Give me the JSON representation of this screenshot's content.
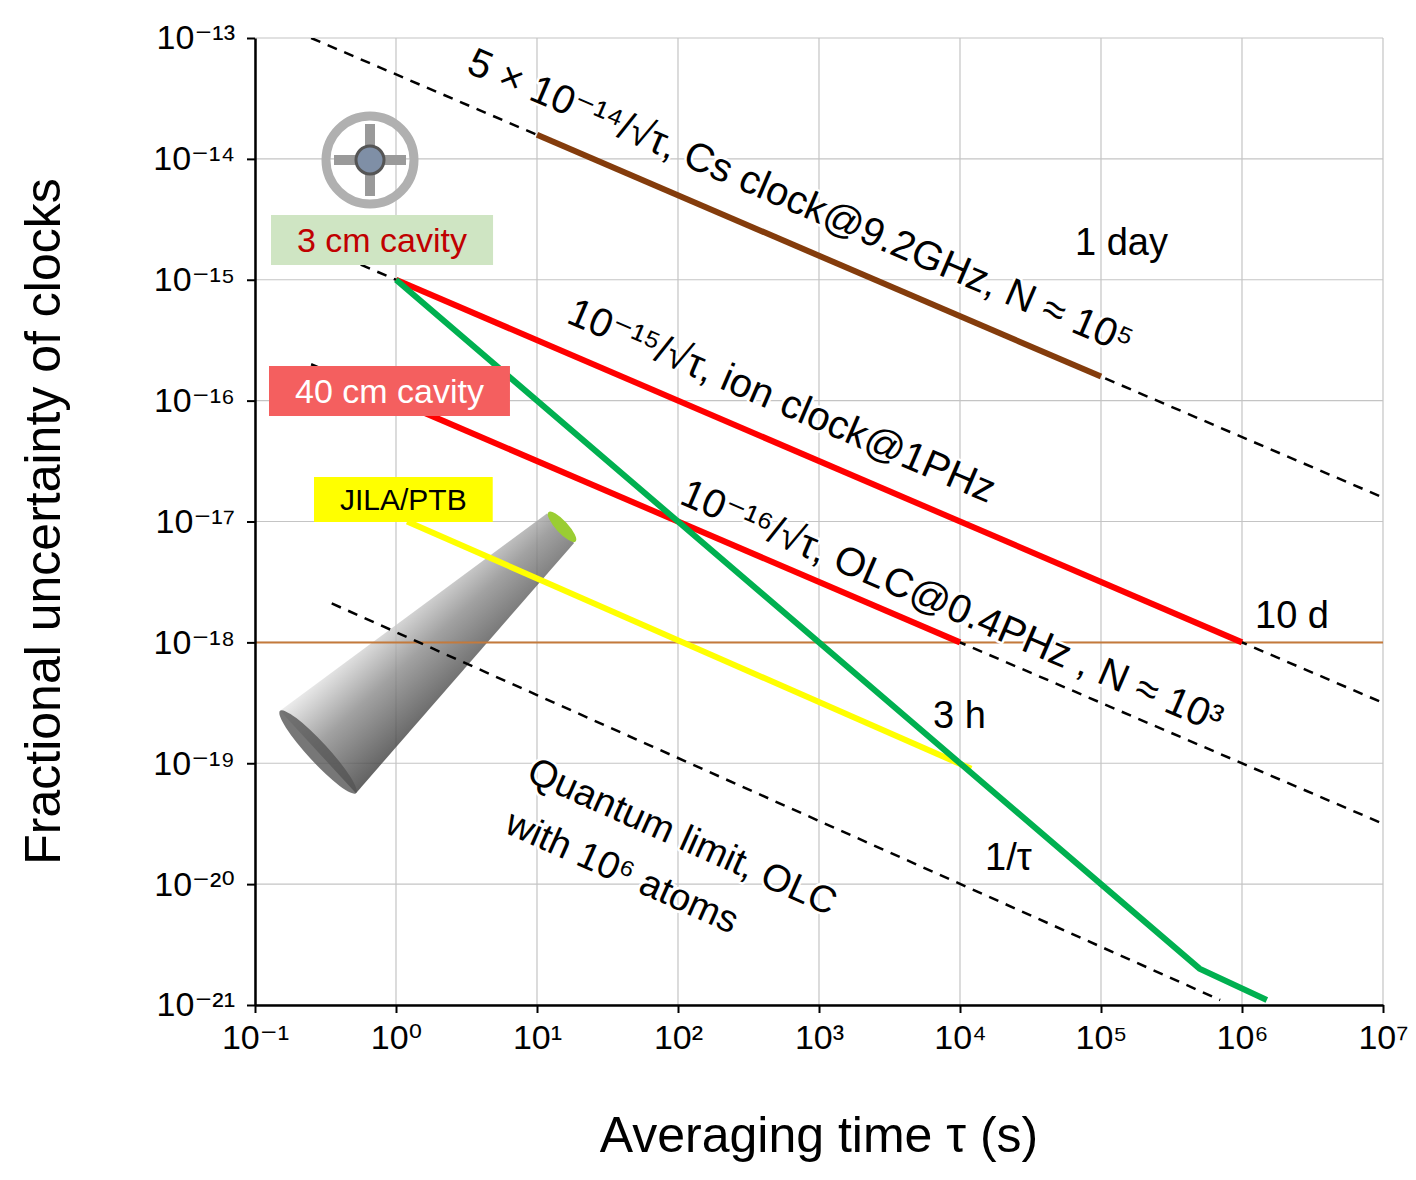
{
  "chart_data": {
    "type": "line",
    "xlabel": "Averaging time τ (s)",
    "ylabel": "Fractional uncertainty of clocks",
    "log": true,
    "grid": true,
    "xlim": [
      0.1,
      10000000
    ],
    "ylim": [
      1e-21,
      1e-13
    ],
    "xticks": [
      {
        "value": 0.1,
        "label": "10⁻¹"
      },
      {
        "value": 1,
        "label": "10⁰"
      },
      {
        "value": 10,
        "label": "10¹"
      },
      {
        "value": 100,
        "label": "10²"
      },
      {
        "value": 1000,
        "label": "10³"
      },
      {
        "value": 10000,
        "label": "10⁴"
      },
      {
        "value": 100000,
        "label": "10⁵"
      },
      {
        "value": 1000000,
        "label": "10⁶"
      },
      {
        "value": 10000000,
        "label": "10⁷"
      }
    ],
    "yticks": [
      {
        "value": 1e-21,
        "label": "10⁻²¹"
      },
      {
        "value": 1e-20,
        "label": "10⁻²⁰"
      },
      {
        "value": 1e-19,
        "label": "10⁻¹⁹"
      },
      {
        "value": 1e-18,
        "label": "10⁻¹⁸"
      },
      {
        "value": 1e-17,
        "label": "10⁻¹⁷"
      },
      {
        "value": 1e-16,
        "label": "10⁻¹⁶"
      },
      {
        "value": 1e-15,
        "label": "10⁻¹⁵"
      },
      {
        "value": 1e-14,
        "label": "10⁻¹⁴"
      },
      {
        "value": 1e-13,
        "label": "10⁻¹³"
      }
    ],
    "series": [
      {
        "color": "#c47a3c",
        "line_style": "solid",
        "x": [
          0.1,
          10000000
        ],
        "values": [
          1e-18,
          1e-18
        ]
      },
      {
        "color": "#000000",
        "line_style": "dashed",
        "x": [
          0.25,
          10000000
        ],
        "values": [
          1e-13,
          1.58e-17
        ]
      },
      {
        "color": "#000000",
        "line_style": "dashed",
        "x": [
          0.25,
          10000000
        ],
        "values": [
          2e-15,
          3.16e-19
        ]
      },
      {
        "color": "#000000",
        "line_style": "dashed",
        "x": [
          0.25,
          10000000
        ],
        "values": [
          2e-16,
          3.16e-20
        ]
      },
      {
        "color": "#000000",
        "line_style": "dashed",
        "x": [
          0.35,
          700000
        ],
        "values": [
          2.1e-18,
          1.1e-21
        ]
      },
      {
        "color": "#843c0c",
        "line_style": "solid",
        "x": [
          10,
          100000
        ],
        "values": [
          1.58e-14,
          1.58e-16
        ]
      },
      {
        "color": "#ff0000",
        "line_style": "solid",
        "x": [
          1,
          1000000
        ],
        "values": [
          1e-15,
          1e-18
        ]
      },
      {
        "color": "#ff0000",
        "line_style": "solid",
        "x": [
          1,
          10000
        ],
        "values": [
          1e-16,
          1e-18
        ]
      },
      {
        "color": "#ffff00",
        "line_style": "solid",
        "x": [
          1.2,
          12000
        ],
        "values": [
          1e-17,
          9e-20
        ]
      },
      {
        "color": "#00b050",
        "line_style": "solid",
        "x": [
          1,
          10000,
          100000,
          500000,
          1500000
        ],
        "values": [
          1e-15,
          1e-19,
          1e-20,
          2e-21,
          1.1e-21
        ]
      }
    ],
    "annotations": [
      "5 × 10⁻¹⁴/√τ, Cs clock@9.2GHz, N ≈ 10⁵",
      "10⁻¹⁵/√τ, ion clock@1PHz",
      "10⁻¹⁶/√τ, OLC@0.4PHz , N ≈ 10³",
      "1 day",
      "10 d",
      "3 h",
      "1/τ",
      "Quantum limit, OLC",
      "with 10⁶ atoms",
      "3 cm cavity",
      "40 cm cavity",
      "JILA/PTB"
    ]
  }
}
